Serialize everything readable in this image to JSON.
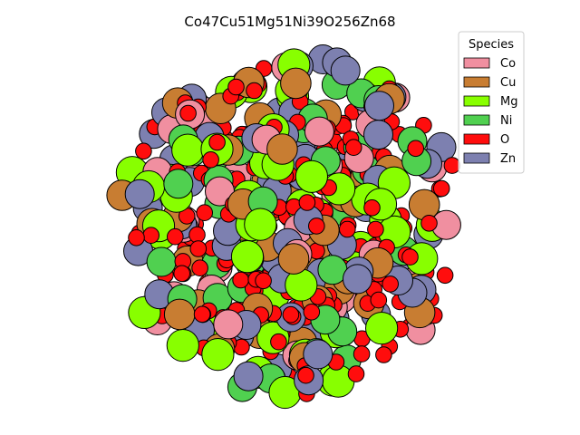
{
  "chart_data": {
    "type": "scatter",
    "title": "Co47Cu51Mg51Ni39O256Zn68",
    "axes_visible": false,
    "legend": {
      "title": "Species",
      "position": "top-right",
      "entries": [
        {
          "name": "Co",
          "color": "#f08fa0"
        },
        {
          "name": "Cu",
          "color": "#c87d32"
        },
        {
          "name": "Mg",
          "color": "#88ff00"
        },
        {
          "name": "Ni",
          "color": "#50d050"
        },
        {
          "name": "O",
          "color": "#ff0d0d"
        },
        {
          "name": "Zn",
          "color": "#7d80b0"
        }
      ]
    },
    "counts": {
      "Co": 47,
      "Cu": 51,
      "Mg": 51,
      "Ni": 39,
      "O": 256,
      "Zn": 68
    },
    "relative_size": {
      "Co": 1.0,
      "Cu": 1.05,
      "Mg": 1.1,
      "Ni": 1.0,
      "O": 0.55,
      "Zn": 1.0
    }
  }
}
